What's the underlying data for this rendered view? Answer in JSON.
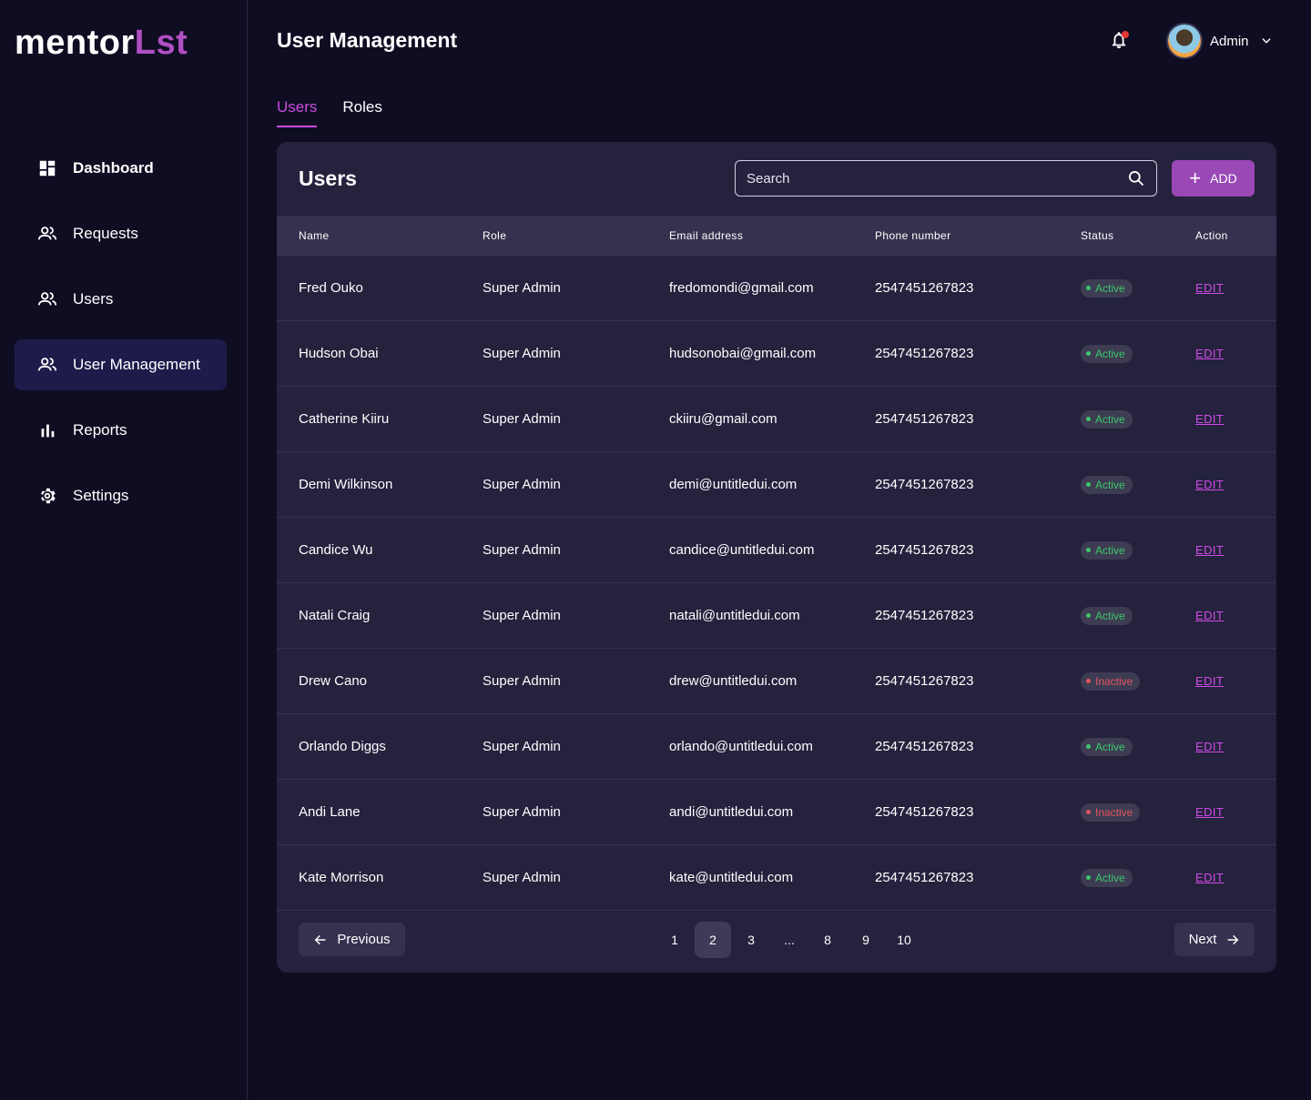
{
  "brand": {
    "logo_white": "mentor",
    "logo_purple": "Lst"
  },
  "sidebar": {
    "items": [
      {
        "label": "Dashboard",
        "icon": "dashboard-icon"
      },
      {
        "label": "Requests",
        "icon": "people-icon"
      },
      {
        "label": "Users",
        "icon": "people-icon"
      },
      {
        "label": "User Management",
        "icon": "people-icon",
        "active": true
      },
      {
        "label": "Reports",
        "icon": "bar-chart-icon"
      },
      {
        "label": "Settings",
        "icon": "gear-icon"
      }
    ]
  },
  "header": {
    "title": "User Management",
    "profile_name": "Admin"
  },
  "tabs": [
    {
      "label": "Users",
      "active": true
    },
    {
      "label": "Roles"
    }
  ],
  "card": {
    "title": "Users",
    "search_placeholder": "Search",
    "add_label": "ADD",
    "columns": [
      "Name",
      "Role",
      "Email address",
      "Phone number",
      "Status",
      "Action"
    ],
    "rows": [
      {
        "name": "Fred Ouko",
        "role": "Super Admin",
        "email": "fredomondi@gmail.com",
        "phone": "2547451267823",
        "status": "Active",
        "action": "EDIT"
      },
      {
        "name": "Hudson Obai",
        "role": "Super Admin",
        "email": "hudsonobai@gmail.com",
        "phone": "2547451267823",
        "status": "Active",
        "action": "EDIT"
      },
      {
        "name": "Catherine Kiiru",
        "role": "Super Admin",
        "email": "ckiiru@gmail.com",
        "phone": "2547451267823",
        "status": "Active",
        "action": "EDIT"
      },
      {
        "name": "Demi Wilkinson",
        "role": "Super Admin",
        "email": "demi@untitledui.com",
        "phone": "2547451267823",
        "status": "Active",
        "action": "EDIT"
      },
      {
        "name": "Candice Wu",
        "role": "Super Admin",
        "email": "candice@untitledui.com",
        "phone": "2547451267823",
        "status": "Active",
        "action": "EDIT"
      },
      {
        "name": "Natali Craig",
        "role": "Super Admin",
        "email": "natali@untitledui.com",
        "phone": "2547451267823",
        "status": "Active",
        "action": "EDIT"
      },
      {
        "name": "Drew Cano",
        "role": "Super Admin",
        "email": "drew@untitledui.com",
        "phone": "2547451267823",
        "status": "Inactive",
        "action": "EDIT"
      },
      {
        "name": "Orlando Diggs",
        "role": "Super Admin",
        "email": "orlando@untitledui.com",
        "phone": "2547451267823",
        "status": "Active",
        "action": "EDIT"
      },
      {
        "name": "Andi Lane",
        "role": "Super Admin",
        "email": "andi@untitledui.com",
        "phone": "2547451267823",
        "status": "Inactive",
        "action": "EDIT"
      },
      {
        "name": "Kate Morrison",
        "role": "Super Admin",
        "email": "kate@untitledui.com",
        "phone": "2547451267823",
        "status": "Active",
        "action": "EDIT"
      }
    ]
  },
  "pagination": {
    "previous_label": "Previous",
    "next_label": "Next",
    "pages": [
      "1",
      "2",
      "3",
      "...",
      "8",
      "9",
      "10"
    ],
    "current": "2"
  },
  "colors": {
    "accent": "#c94be0",
    "button": "#9a48b6",
    "active_status": "#3cc76b",
    "inactive_status": "#e25563"
  }
}
